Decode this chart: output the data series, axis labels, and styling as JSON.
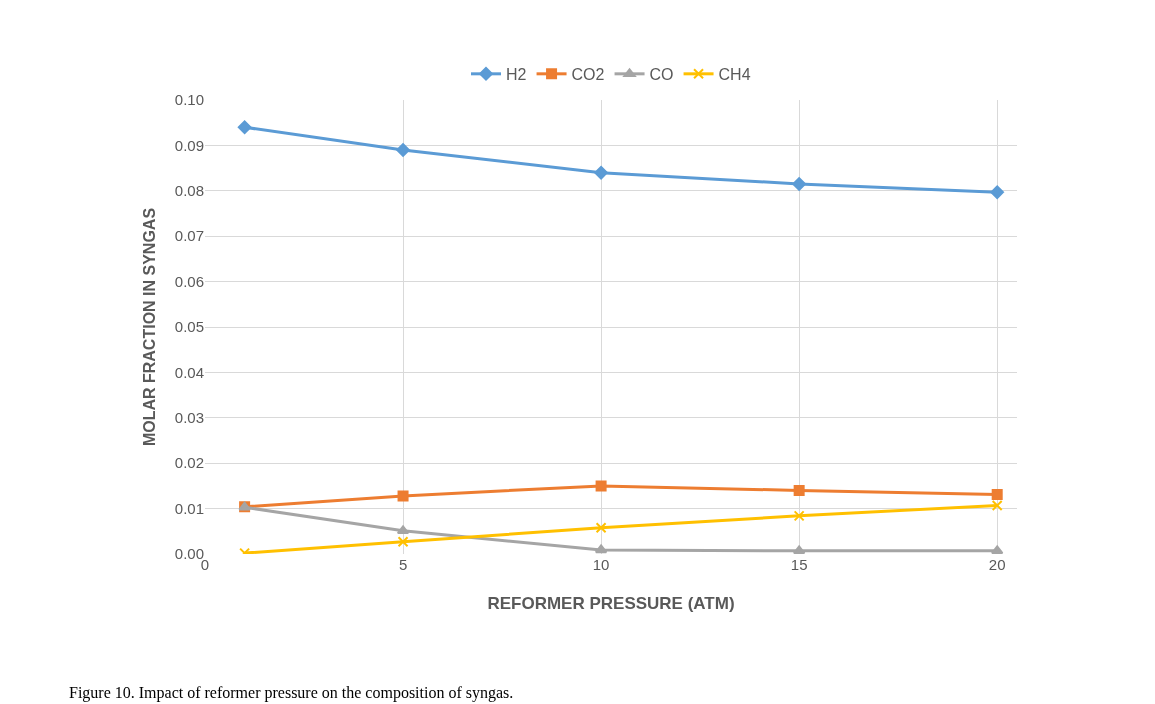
{
  "chart_data": {
    "type": "line",
    "xlabel": "REFORMER PRESSURE (ATM)",
    "ylabel": "MOLAR FRACTION IN SYNGAS",
    "x": [
      1,
      5,
      10,
      15,
      20
    ],
    "series": [
      {
        "name": "H2",
        "color": "#5b9bd5",
        "marker": "diamond",
        "values": [
          0.094,
          0.089,
          0.084,
          0.0815,
          0.0797
        ]
      },
      {
        "name": "CO2",
        "color": "#ed7d31",
        "marker": "square",
        "values": [
          0.0104,
          0.0128,
          0.015,
          0.014,
          0.0131
        ]
      },
      {
        "name": "CO",
        "color": "#a5a5a5",
        "marker": "triangle",
        "values": [
          0.0103,
          0.0051,
          0.0009,
          0.0007,
          0.0007
        ]
      },
      {
        "name": "CH4",
        "color": "#ffc000",
        "marker": "cross",
        "values": [
          0.0002,
          0.0027,
          0.0058,
          0.0084,
          0.0107
        ]
      }
    ],
    "xlim": [
      0,
      20.5
    ],
    "xticks": [
      0,
      5,
      10,
      15,
      20
    ],
    "ylim": [
      0,
      0.1
    ],
    "yticks": [
      {
        "value": 0,
        "label": "0.00"
      },
      {
        "value": 0.01,
        "label": "0.01"
      },
      {
        "value": 0.02,
        "label": "0.02"
      },
      {
        "value": 0.03,
        "label": "0.03"
      },
      {
        "value": 0.04,
        "label": "0.04"
      },
      {
        "value": 0.05,
        "label": "0.05"
      },
      {
        "value": 0.06,
        "label": "0.06"
      },
      {
        "value": 0.07,
        "label": "0.07"
      },
      {
        "value": 0.08,
        "label": "0.08"
      },
      {
        "value": 0.09,
        "label": "0.09"
      },
      {
        "value": 0.1,
        "label": "0.10"
      }
    ],
    "grid": true,
    "legend": "top",
    "line_style": "solid",
    "annotations": [
      "Figure 10. Impact of reformer pressure on the composition of syngas."
    ]
  }
}
